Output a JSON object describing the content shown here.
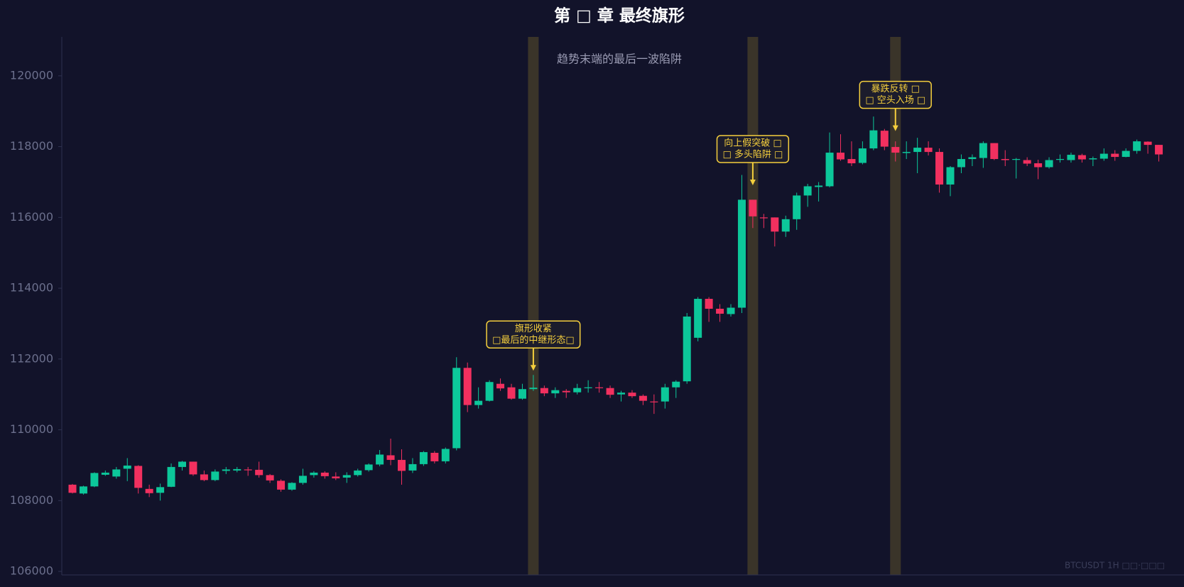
{
  "chart_data": {
    "type": "candlestick",
    "title": "第 □ 章 最终旗形",
    "subtitle": "趋势末端的最后一波陷阱",
    "watermark": "BTCUSDT 1H  □□·□□□",
    "up_color": "#0cc79a",
    "down_color": "#f2305f",
    "highlight_color": "#3a3429",
    "annotation_color": "#f5cf3d",
    "ylim": [
      105900,
      121100
    ],
    "yticks": [
      106000,
      108000,
      110000,
      112000,
      114000,
      116000,
      118000,
      120000
    ],
    "open": [
      108450,
      108200,
      108400,
      108730,
      108680,
      108900,
      108980,
      108330,
      108220,
      108390,
      108950,
      109100,
      108740,
      108580,
      108840,
      108850,
      108880,
      108870,
      108720,
      108560,
      108310,
      108500,
      108720,
      108790,
      108680,
      108650,
      108720,
      108860,
      109020,
      109280,
      109150,
      108850,
      109030,
      109350,
      109110,
      109480,
      111750,
      110700,
      110820,
      111300,
      111200,
      110880,
      111150,
      111180,
      111030,
      111100,
      111060,
      111180,
      111200,
      111180,
      111000,
      111050,
      110960,
      110800,
      110800,
      111200,
      111370,
      112600,
      113700,
      113420,
      113270,
      113450,
      116500,
      116000,
      116000,
      115600,
      115950,
      116620,
      116860,
      116880,
      117830,
      117650,
      117540,
      117950,
      118450,
      117990,
      117820,
      117850,
      117970,
      117850,
      116930,
      117420,
      117650,
      117680,
      118100,
      117650,
      117630,
      117620,
      117530,
      117420,
      117630,
      117620,
      117760,
      117640,
      117660,
      117800,
      117710,
      117880,
      118140,
      118050
    ],
    "high": [
      108470,
      108420,
      108800,
      108850,
      108950,
      109200,
      109000,
      108450,
      108480,
      109050,
      109120,
      109100,
      108850,
      108880,
      108950,
      108950,
      108950,
      109100,
      108750,
      108600,
      108520,
      108900,
      108830,
      108830,
      108800,
      108800,
      108900,
      109050,
      109430,
      109750,
      109450,
      109200,
      109400,
      109400,
      109500,
      112050,
      111900,
      111200,
      111400,
      111450,
      111300,
      111300,
      111550,
      111250,
      111200,
      111150,
      111300,
      111400,
      111350,
      111250,
      111100,
      111120,
      111000,
      111000,
      111300,
      111400,
      113300,
      113750,
      113750,
      113550,
      113550,
      117200,
      116500,
      116100,
      116000,
      116050,
      116700,
      116950,
      117000,
      118400,
      118350,
      118150,
      118150,
      118850,
      118500,
      118150,
      118150,
      118250,
      118150,
      117950,
      117450,
      117780,
      117780,
      118150,
      118100,
      117900,
      117680,
      117700,
      117630,
      117700,
      117780,
      117830,
      117800,
      117720,
      117950,
      117900,
      117950,
      118200,
      118150,
      118050
    ],
    "low": [
      108200,
      108170,
      108380,
      108700,
      108620,
      108550,
      108200,
      108100,
      108000,
      108380,
      108850,
      108700,
      108550,
      108550,
      108750,
      108800,
      108700,
      108650,
      108500,
      108250,
      108280,
      108450,
      108650,
      108620,
      108580,
      108500,
      108680,
      108820,
      108970,
      109000,
      108450,
      108780,
      108980,
      109050,
      109050,
      109420,
      110500,
      110600,
      110800,
      111100,
      110850,
      110850,
      111100,
      110950,
      110900,
      110900,
      111000,
      111050,
      111050,
      110900,
      110800,
      110900,
      110700,
      110450,
      110600,
      110900,
      111300,
      112500,
      113050,
      113050,
      113200,
      113300,
      115700,
      115700,
      115180,
      115450,
      115650,
      116300,
      116450,
      116850,
      117600,
      117450,
      117500,
      117900,
      117900,
      117580,
      117650,
      117250,
      117750,
      116700,
      116600,
      117250,
      117450,
      117400,
      117620,
      117450,
      117100,
      117450,
      117080,
      117380,
      117550,
      117550,
      117550,
      117450,
      117600,
      117600,
      117700,
      117800,
      117800,
      117580
    ],
    "close": [
      108220,
      108400,
      108780,
      108790,
      108880,
      108990,
      108360,
      108210,
      108380,
      108950,
      109100,
      108740,
      108580,
      108820,
      108880,
      108890,
      108870,
      108720,
      108570,
      108310,
      108500,
      108700,
      108790,
      108690,
      108630,
      108720,
      108850,
      109020,
      109300,
      109150,
      108840,
      109030,
      109370,
      109110,
      109460,
      111750,
      110700,
      110820,
      111350,
      111170,
      110880,
      111150,
      111190,
      111030,
      111120,
      111060,
      111180,
      111200,
      111180,
      110990,
      111050,
      110950,
      110820,
      110780,
      111200,
      111360,
      113200,
      113700,
      113420,
      113280,
      113450,
      116500,
      116030,
      115980,
      115600,
      115950,
      116620,
      116880,
      116900,
      117830,
      117640,
      117530,
      117950,
      118460,
      118000,
      117830,
      117850,
      117970,
      117850,
      116930,
      117420,
      117650,
      117700,
      118100,
      117650,
      117620,
      117650,
      117520,
      117420,
      117620,
      117650,
      117770,
      117640,
      117670,
      117800,
      117710,
      117880,
      118150,
      118050,
      117780
    ],
    "highlights": [
      42,
      62,
      75
    ],
    "annotations": [
      {
        "lines": [
          "旗形收紧",
          "□最后的中继形态□"
        ],
        "index": 42,
        "value": 111670
      },
      {
        "lines": [
          "向上假突破 □",
          "□ 多头陷阱 □"
        ],
        "index": 62,
        "value": 116910
      },
      {
        "lines": [
          "暴跌反转 □",
          "□ 空头入场 □"
        ],
        "index": 75,
        "value": 118440
      }
    ]
  }
}
